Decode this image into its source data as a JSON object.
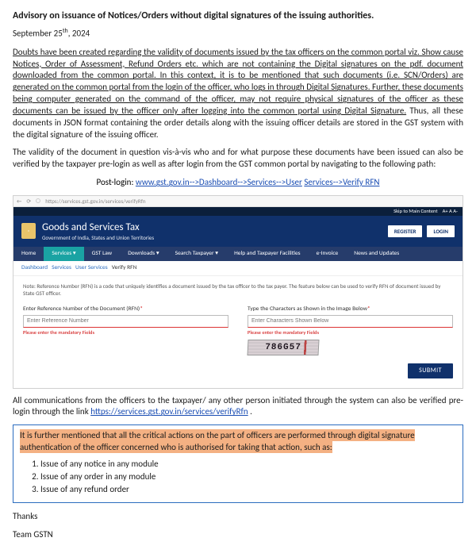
{
  "doc": {
    "title": "Advisory on issuance of Notices/Orders without digital signatures of the issuing authorities.",
    "date_prefix": "September 25",
    "date_ord": "th",
    "date_suffix": ", 2024",
    "para1_a": "Doubts have been created regarding the validity of documents issued by the tax officers on the common portal viz.  Show cause Notices, Order of Assessment, Refund Orders etc. which are not containing the Digital signatures on the pdf. document downloaded from the common portal. In this context, it is to be mentioned that such documents (i.e. SCN/Orders) are generated on the common portal from the login of the officer, who logs in through Digital Signatures. Further, these documents being computer generated on the command of the officer, may not require physical signatures of the officer as these documents can be issued by the officer only after logging into the common portal using Digital Signature.",
    "para1_b": " Thus, all these documents in JSON format containing the order details along with the issuing officer details are stored in the GST system with the digital signature of the issuing officer.",
    "para2": "The validity of the document in question vis-à-vis who and for what purpose these documents have been issued can also be verified by the taxpayer pre-login as well as after login from the GST common portal by navigating to the following path:",
    "postlogin_label": "Post-login: ",
    "postlogin_link": "www.gst.gov.in-->Dashboard-->Services-->User",
    "postlogin_tail": " Services-->Verify RFN",
    "below_shot_a": "All communications from the officers to the taxpayer/ any other person initiated through the system can also be verified pre-login through the link ",
    "below_shot_link": "https://services.gst.gov.in/services/verifyRfn",
    "below_shot_b": " .",
    "hl_a": "It is further mentioned that ",
    "hl_b": "all the critical actions on the part of officers are performed through digital signature authentication of the officer concerned who is authorised for taking that action, such as:",
    "li1": "Issue of any notice in any module",
    "li2": "Issue of any order in any module",
    "li3": "Issue of any refund order",
    "thanks": "Thanks",
    "sign": "Team GSTN"
  },
  "shot": {
    "url": "https://services.gst.gov.in/services/verifyRfn",
    "skip": "Skip to Main Content",
    "a_plus": "A+  A  A-",
    "title": "Goods and Services Tax",
    "sub": "Government of India, States and Union Territories",
    "btn_register": "REGISTER",
    "btn_login": "LOGIN",
    "nav": {
      "home": "Home",
      "services": "Services ▾",
      "gstlaw": "GST Law",
      "downloads": "Downloads ▾",
      "search": "Search Taxpayer ▾",
      "help": "Help and Taxpayer Facilities",
      "einvoice": "e-Invoice",
      "news": "News and Updates"
    },
    "crumb": {
      "a": "Dashboard",
      "b": "Services",
      "c": "User Services",
      "d": "Verify RFN"
    },
    "note": "Note: Reference Number (RFN) is a code that uniquely identifies a document issued by the tax officer to the tax payer. The feature below can be used to verify RFN of document issued by State GST officer.",
    "fld1_label": "Enter Reference Number of the Document (RFN)",
    "fld1_ph": "Enter Reference Number",
    "fld2_label": "Type the Characters as Shown in the Image Below",
    "fld2_ph": "Enter Characters Shown Below",
    "err": "Please enter the mandatory Fields",
    "captcha": "786G57",
    "submit": "SUBMIT"
  }
}
